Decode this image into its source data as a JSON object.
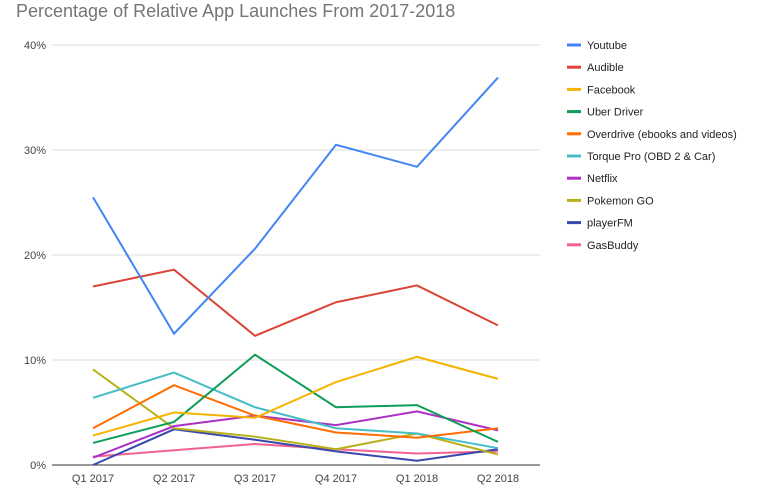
{
  "chart_data": {
    "type": "line",
    "title": "Percentage of Relative App Launches From 2017-2018",
    "xlabel": "",
    "ylabel": "",
    "categories": [
      "Q1 2017",
      "Q2 2017",
      "Q3 2017",
      "Q4 2017",
      "Q1 2018",
      "Q2 2018"
    ],
    "ylim": [
      0,
      40
    ],
    "yticks": [
      0,
      10,
      20,
      30,
      40
    ],
    "ytick_labels": [
      "0%",
      "10%",
      "20%",
      "30%",
      "40%"
    ],
    "grid": true,
    "legend": "right",
    "series": [
      {
        "name": "Youtube",
        "color": "#4285f4",
        "values": [
          25.5,
          12.5,
          20.6,
          30.5,
          28.4,
          36.9
        ]
      },
      {
        "name": "Audible",
        "color": "#db4437",
        "values": [
          17.0,
          18.6,
          12.3,
          15.5,
          17.1,
          13.3
        ]
      },
      {
        "name": "Facebook",
        "color": "#f4b400",
        "values": [
          2.8,
          5.0,
          4.5,
          7.9,
          10.3,
          8.2
        ]
      },
      {
        "name": "Uber Driver",
        "color": "#0f9d58",
        "values": [
          2.1,
          4.1,
          10.5,
          5.5,
          5.7,
          2.2
        ]
      },
      {
        "name": "Overdrive (ebooks and videos)",
        "color": "#ff6d00",
        "values": [
          3.5,
          7.6,
          4.7,
          3.1,
          2.6,
          3.5
        ]
      },
      {
        "name": "Torque Pro (OBD 2 & Car)",
        "color": "#46bdc6",
        "values": [
          6.4,
          8.8,
          5.5,
          3.5,
          3.0,
          1.6
        ]
      },
      {
        "name": "Netflix",
        "color": "#ab30c4",
        "values": [
          0.7,
          3.7,
          4.7,
          3.8,
          5.1,
          3.3
        ]
      },
      {
        "name": "Pokemon GO",
        "color": "#b7b21c",
        "values": [
          9.1,
          3.5,
          2.7,
          1.5,
          3.0,
          1.0
        ]
      },
      {
        "name": "playerFM",
        "color": "#3949ab",
        "values": [
          0.0,
          3.4,
          2.4,
          1.3,
          0.4,
          1.5
        ]
      },
      {
        "name": "GasBuddy",
        "color": "#f06292",
        "values": [
          0.8,
          1.4,
          2.0,
          1.5,
          1.1,
          1.3
        ]
      }
    ]
  }
}
